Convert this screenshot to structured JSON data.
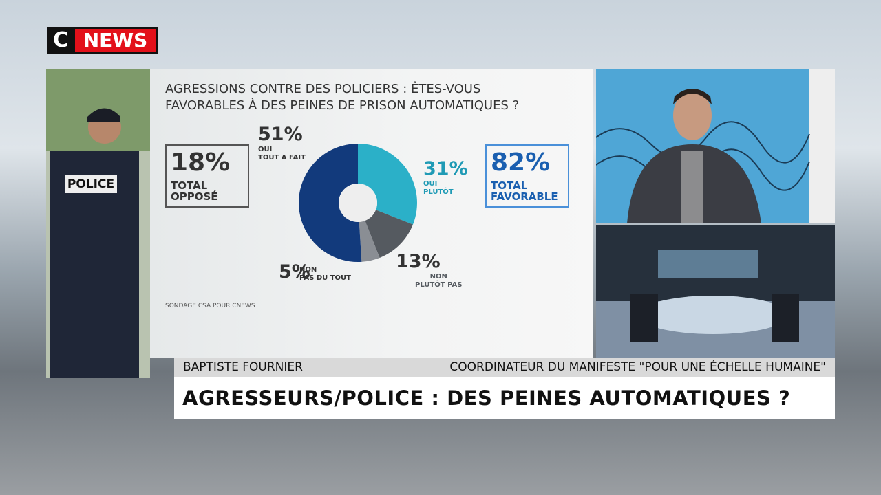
{
  "logo": {
    "c": "C",
    "news": "NEWS"
  },
  "chart_data": {
    "type": "pie",
    "donut": true,
    "title": "AGRESSIONS CONTRE DES POLICIERS : ÊTES-VOUS FAVORABLES À DES PEINES DE PRISON AUTOMATIQUES ?",
    "categories": [
      "OUI\nPLUTÔT",
      "NON\nPLUTÔT PAS",
      "NON\nPAS DU TOUT",
      "OUI\nTOUT A FAIT"
    ],
    "values": [
      31,
      13,
      5,
      51
    ],
    "value_labels": [
      "31%",
      "13%",
      "5%",
      "51%"
    ],
    "colors": [
      "#2bb0c8",
      "#555a60",
      "#8a8e94",
      "#123a7c"
    ],
    "source": "SONDAGE CSA POUR CNEWS"
  },
  "summary": [
    {
      "value": "18%",
      "text": "TOTAL\nOPPOSÉ"
    },
    {
      "value": "82%",
      "text": "TOTAL\nFAVORABLE"
    }
  ],
  "banner": {
    "name": "BAPTISTE FOURNIER",
    "role": "COORDINATEUR DU MANIFESTE \"POUR UNE ÉCHELLE HUMAINE\"",
    "headline": "AGRESSEURS/POLICE : DES PEINES AUTOMATIQUES ?"
  }
}
